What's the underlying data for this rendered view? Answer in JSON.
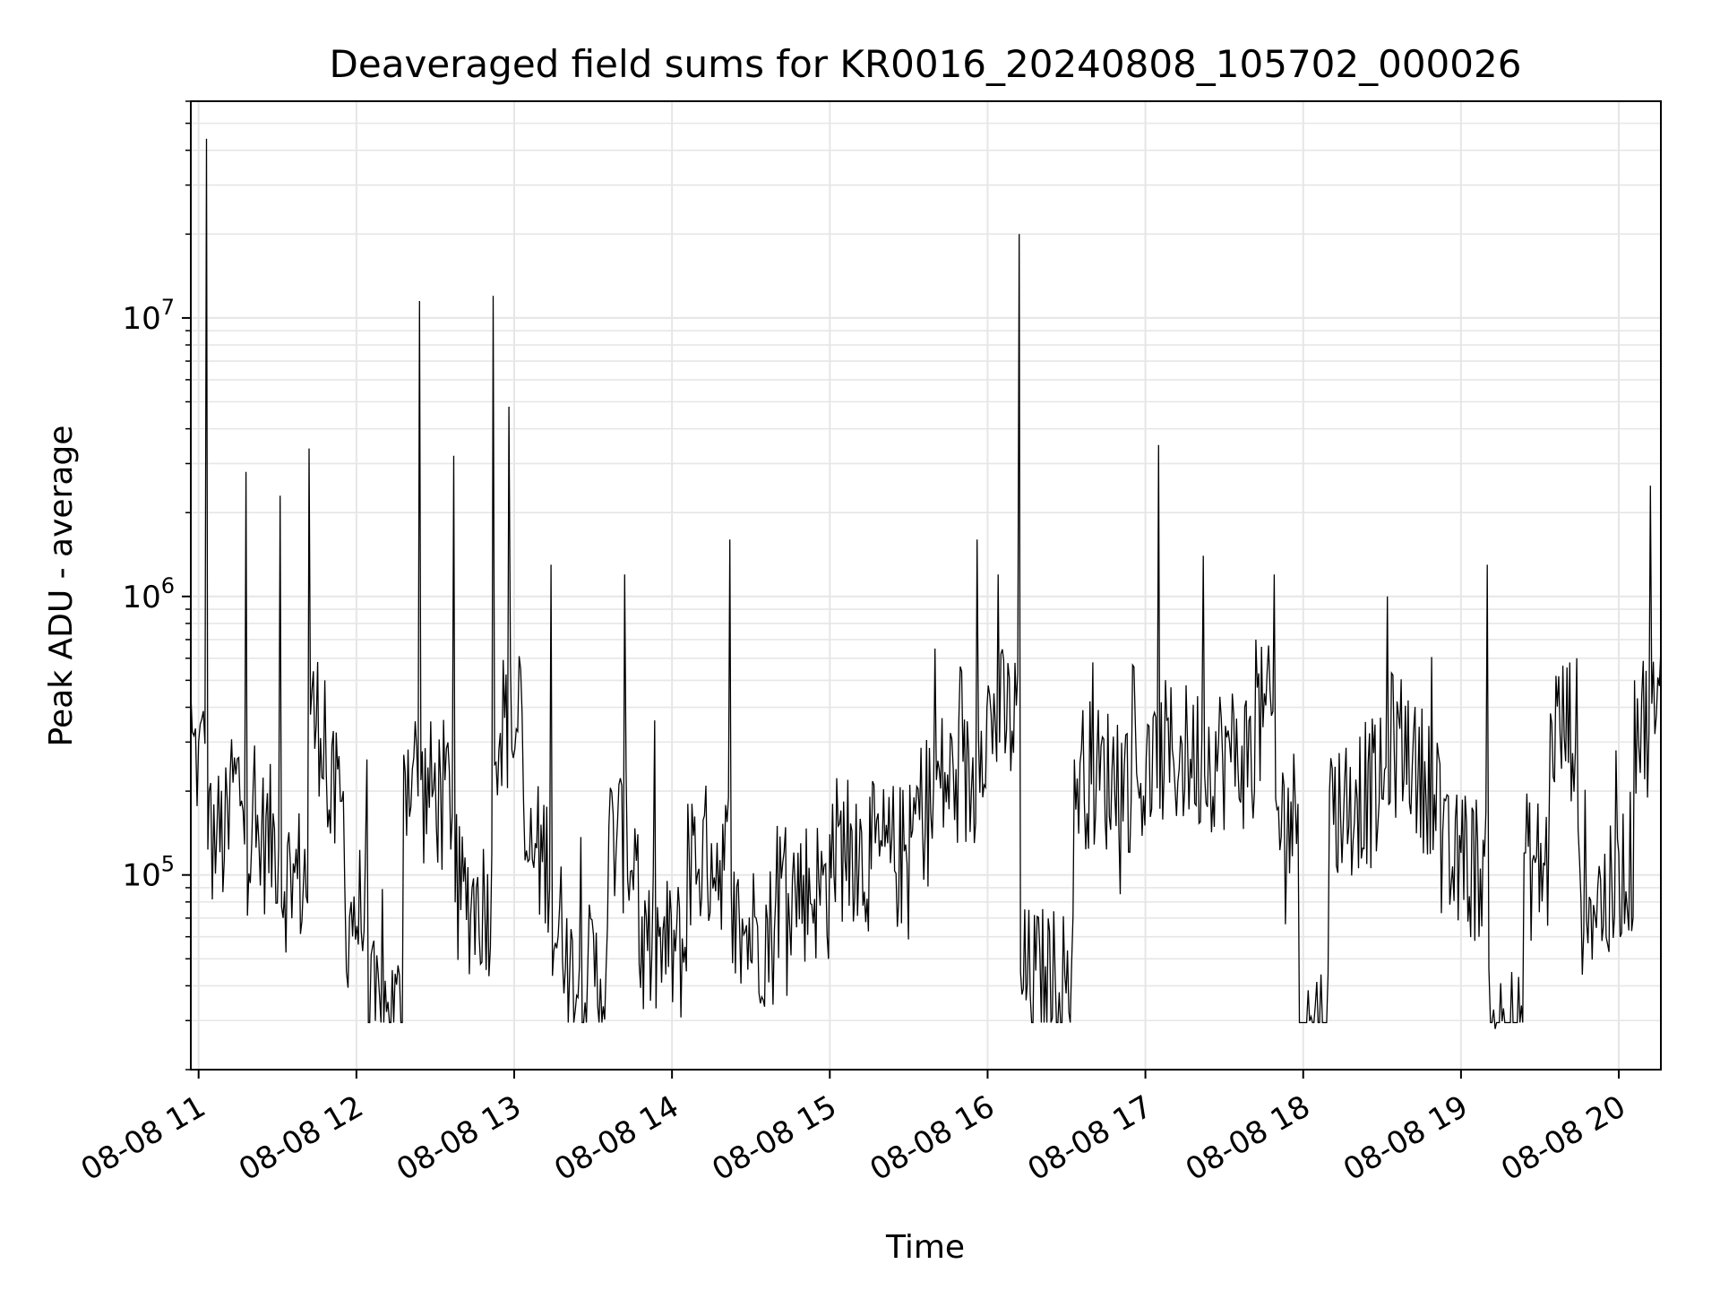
{
  "chart_data": {
    "type": "line",
    "title": "Deaveraged field sums for KR0016_20240808_105702_000026",
    "xlabel": "Time",
    "ylabel": "Peak ADU - average",
    "yscale": "log",
    "ylim": [
      20000,
      60000000
    ],
    "xlim": [
      "2024-08-08T10:57:02",
      "2024-08-08T20:16:00"
    ],
    "grid": true,
    "line_color": "#000000",
    "x_ticks": [
      "08-08 11",
      "08-08 12",
      "08-08 13",
      "08-08 14",
      "08-08 15",
      "08-08 16",
      "08-08 17",
      "08-08 18",
      "08-08 19",
      "08-08 20"
    ],
    "y_ticks": [
      {
        "base": "10",
        "exp": "5",
        "value": 100000
      },
      {
        "base": "10",
        "exp": "6",
        "value": 1000000
      },
      {
        "base": "10",
        "exp": "7",
        "value": 10000000
      }
    ],
    "series": [
      {
        "x": [
          "2024-08-08T10:57:02",
          "2024-08-08T11:00",
          "2024-08-08T11:03",
          "2024-08-08T11:04",
          "2024-08-08T11:07",
          "2024-08-08T11:12",
          "2024-08-08T11:18",
          "2024-08-08T11:24",
          "2024-08-08T11:31",
          "2024-08-08T11:36",
          "2024-08-08T11:42",
          "2024-08-08T11:48",
          "2024-08-08T11:55",
          "2024-08-08T11:58",
          "2024-08-08T12:04",
          "2024-08-08T12:12",
          "2024-08-08T12:18",
          "2024-08-08T12:24",
          "2024-08-08T12:32",
          "2024-08-08T12:37",
          "2024-08-08T12:44",
          "2024-08-08T12:52",
          "2024-08-08T12:58",
          "2024-08-08T13:03",
          "2024-08-08T13:08",
          "2024-08-08T13:14",
          "2024-08-08T13:20",
          "2024-08-08T13:28",
          "2024-08-08T13:36",
          "2024-08-08T13:42",
          "2024-08-08T13:47",
          "2024-08-08T13:55",
          "2024-08-08T14:06",
          "2024-08-08T14:15",
          "2024-08-08T14:22",
          "2024-08-08T14:32",
          "2024-08-08T14:40",
          "2024-08-08T14:50",
          "2024-08-08T15:00",
          "2024-08-08T15:10",
          "2024-08-08T15:22",
          "2024-08-08T15:32",
          "2024-08-08T15:40",
          "2024-08-08T15:48",
          "2024-08-08T15:56",
          "2024-08-08T16:04",
          "2024-08-08T16:12",
          "2024-08-08T16:22",
          "2024-08-08T16:33",
          "2024-08-08T16:40",
          "2024-08-08T16:52",
          "2024-08-08T17:05",
          "2024-08-08T17:16",
          "2024-08-08T17:22",
          "2024-08-08T17:32",
          "2024-08-08T17:42",
          "2024-08-08T17:49",
          "2024-08-08T17:58",
          "2024-08-08T18:03",
          "2024-08-08T18:10",
          "2024-08-08T18:20",
          "2024-08-08T18:32",
          "2024-08-08T18:42",
          "2024-08-08T18:52",
          "2024-08-08T19:00",
          "2024-08-08T19:10",
          "2024-08-08T19:13",
          "2024-08-08T19:24",
          "2024-08-08T19:34",
          "2024-08-08T19:44",
          "2024-08-08T19:52",
          "2024-08-08T20:00",
          "2024-08-08T20:06",
          "2024-08-08T20:12",
          "2024-08-08T20:16"
        ],
        "y": [
          450000,
          300000,
          44000000,
          200000,
          150000,
          230000,
          2800000,
          150000,
          2300000,
          110000,
          3400000,
          500000,
          200000,
          80000,
          260000,
          35000,
          270000,
          11500000,
          220000,
          3200000,
          90000,
          12000000,
          4800000,
          380000,
          130000,
          1300000,
          70000,
          48000,
          150000,
          1200000,
          140000,
          60000,
          180000,
          130000,
          1600000,
          70000,
          150000,
          100000,
          140000,
          180000,
          130000,
          190000,
          650000,
          240000,
          1600000,
          1200000,
          20000000,
          47000,
          260000,
          580000,
          250000,
          3500000,
          300000,
          1400000,
          300000,
          700000,
          1200000,
          180000,
          31000,
          200000,
          220000,
          1000000,
          330000,
          250000,
          120000,
          1300000,
          28000,
          120000,
          380000,
          600000,
          90000,
          120000,
          500000,
          2500000,
          650000
        ]
      }
    ]
  }
}
